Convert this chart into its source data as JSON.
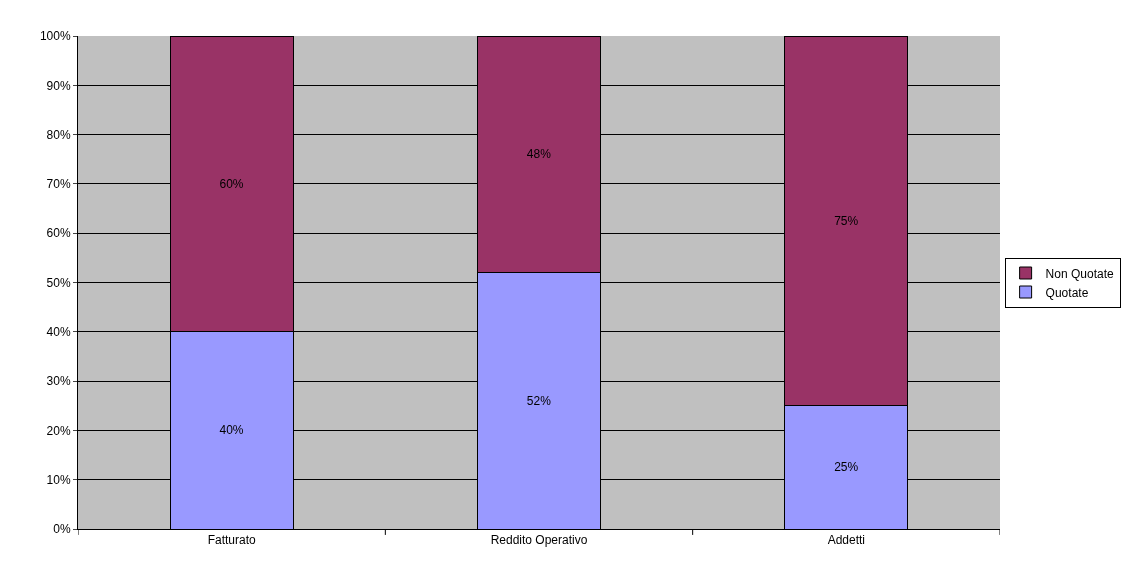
{
  "chart_data": {
    "type": "bar",
    "stacked": true,
    "categories": [
      "Fatturato",
      "Reddito Operativo",
      "Addetti"
    ],
    "series": [
      {
        "name": "Quotate",
        "color": "#9999ff",
        "values": [
          40,
          52,
          25
        ],
        "value_labels": [
          "40%",
          "52%",
          "25%"
        ]
      },
      {
        "name": "Non Quotate",
        "color": "#993366",
        "values": [
          60,
          48,
          75
        ],
        "value_labels": [
          "60%",
          "48%",
          "75%"
        ]
      }
    ],
    "ylim": [
      0,
      100
    ],
    "yticks": [
      {
        "value": 0,
        "label": "0%"
      },
      {
        "value": 10,
        "label": "10%"
      },
      {
        "value": 20,
        "label": "20%"
      },
      {
        "value": 30,
        "label": "30%"
      },
      {
        "value": 40,
        "label": "40%"
      },
      {
        "value": 50,
        "label": "50%"
      },
      {
        "value": 60,
        "label": "60%"
      },
      {
        "value": 70,
        "label": "70%"
      },
      {
        "value": 80,
        "label": "80%"
      },
      {
        "value": 90,
        "label": "90%"
      },
      {
        "value": 100,
        "label": "100%"
      }
    ],
    "grid": "y",
    "legend": "right"
  }
}
